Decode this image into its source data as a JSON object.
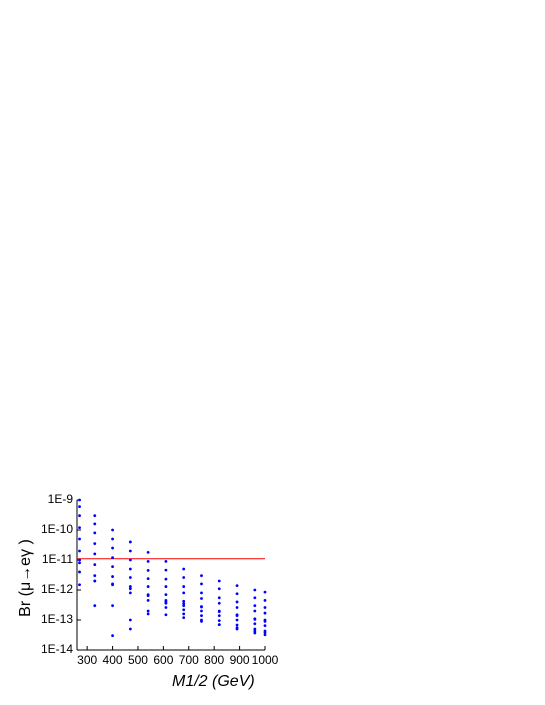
{
  "chart_data": {
    "type": "scatter",
    "x_label": "M1/2 (GeV)",
    "y_label": "Br (μ→eγ )",
    "x": [
      270,
      330,
      400,
      470,
      540,
      610,
      680,
      750,
      820,
      890,
      960,
      1000
    ],
    "series": [
      {
        "color": "#0000ff",
        "values": [
          1e-09,
          3e-10,
          1e-10,
          4e-11,
          1.8e-11,
          9e-12,
          5e-12,
          3e-12,
          2e-12,
          1.4e-12,
          1e-12,
          8.5e-13
        ]
      },
      {
        "color": "#0000ff",
        "values": [
          6e-10,
          1.6e-10,
          5e-11,
          2e-11,
          9e-12,
          4.6e-12,
          2.6e-12,
          1.6e-12,
          1.1e-12,
          7.5e-13,
          5.5e-13,
          4.5e-13
        ]
      },
      {
        "color": "#0000ff",
        "values": [
          3e-10,
          8e-11,
          2.5e-11,
          1e-11,
          4.5e-12,
          2.3e-12,
          1.3e-12,
          8e-13,
          5.5e-13,
          4e-13,
          3e-13,
          2.6e-13
        ]
      },
      {
        "color": "#0000ff",
        "values": [
          1.2e-10,
          3.5e-11,
          1.2e-11,
          5e-12,
          2.4e-12,
          1.3e-12,
          8e-13,
          5.2e-13,
          3.6e-13,
          2.6e-13,
          2e-13,
          1.7e-13
        ]
      },
      {
        "color": "#0000ff",
        "values": [
          5e-11,
          1.6e-11,
          6e-12,
          2.6e-12,
          1.3e-12,
          7e-13,
          4.2e-13,
          2.7e-13,
          1.9e-13,
          1.4e-13,
          1.05e-13,
          9e-14
        ]
      },
      {
        "color": "#0000ff",
        "values": [
          2e-11,
          7e-12,
          2.8e-12,
          1.3e-12,
          6.5e-13,
          3.6e-13,
          2.2e-13,
          1.4e-13,
          9.5e-14,
          6.8e-14,
          5e-14,
          4.3e-14
        ]
      },
      {
        "color": "#0000ff",
        "values": [
          1e-11,
          2e-12,
          3e-13,
          5e-14,
          2e-13,
          4e-13,
          3.5e-13,
          2.8e-13,
          2e-13,
          1.5e-13,
          1.1e-13,
          1e-13
        ]
      },
      {
        "color": "#0000ff",
        "values": [
          4e-12,
          3e-13,
          3e-14,
          1e-13,
          1.6e-13,
          1.5e-13,
          1.2e-13,
          9e-14,
          7e-14,
          5.5e-14,
          4.3e-14,
          3.8e-14
        ]
      },
      {
        "color": "#0000ff",
        "values": [
          8e-12,
          3e-12,
          1.5e-12,
          8e-13,
          4.5e-13,
          2.6e-13,
          1.6e-13,
          1e-13,
          7e-14,
          5e-14,
          3.7e-14,
          3.2e-14
        ]
      },
      {
        "color": "#0000ff",
        "values": [
          1.5e-12,
          2e-12,
          1.6e-12,
          1.1e-12,
          7e-13,
          4.5e-13,
          3e-13,
          2e-13,
          1.4e-13,
          1e-13,
          7.5e-14,
          6.5e-14
        ]
      }
    ],
    "xlim": [
      260,
      1000
    ],
    "xticks": [
      300,
      400,
      500,
      600,
      700,
      800,
      900,
      1000
    ],
    "ylim": [
      1e-14,
      1e-09
    ],
    "yticks": [
      {
        "value": 1e-14,
        "label": "1E-14"
      },
      {
        "value": 1e-13,
        "label": "1E-13"
      },
      {
        "value": 1e-12,
        "label": "1E-12"
      },
      {
        "value": 1e-11,
        "label": "1E-11"
      },
      {
        "value": 1e-10,
        "label": "1E-10"
      },
      {
        "value": 1e-09,
        "label": "1E-9"
      }
    ],
    "y_log": true,
    "reference_line": {
      "y": 1.1e-11,
      "color": "#ff0000"
    }
  }
}
